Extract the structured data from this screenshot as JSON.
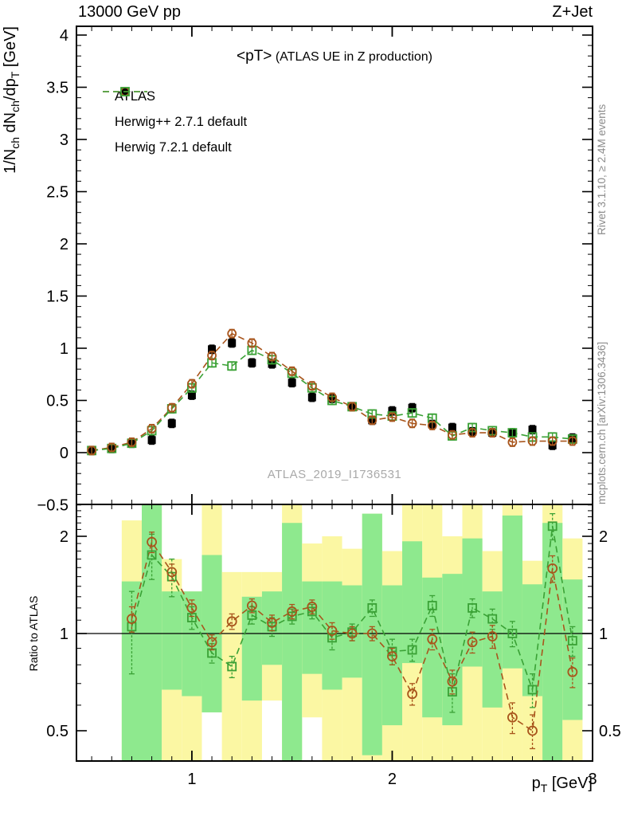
{
  "header": {
    "left": "13000 GeV pp",
    "right": "Z+Jet"
  },
  "title": {
    "prefix": "<pT>",
    "suffix": " (ATLAS UE in Z production)"
  },
  "watermark": "ATLAS_2019_I1736531",
  "side_text_top": "Rivet 3.1.10, ≥ 2.4M events",
  "side_text_bottom": "mcplots.cern.ch [arXiv:1306.3436]",
  "axes": {
    "ylabel_top": "1/N_{ch} dN_{ch}/dp_{T} [GeV]",
    "ylabel_ratio": "Ratio to ATLAS",
    "xlabel": "p_{T} [GeV]",
    "x_ticks": [
      {
        "v": 1,
        "l": "1"
      },
      {
        "v": 2,
        "l": "2"
      },
      {
        "v": 3,
        "l": "3"
      }
    ],
    "top_y_ticks": [
      {
        "v": -0.5,
        "l": "−0.5"
      },
      {
        "v": 0,
        "l": "0"
      },
      {
        "v": 0.5,
        "l": "0.5"
      },
      {
        "v": 1,
        "l": "1"
      },
      {
        "v": 1.5,
        "l": "1.5"
      },
      {
        "v": 2,
        "l": "2"
      },
      {
        "v": 2.5,
        "l": "2.5"
      },
      {
        "v": 3,
        "l": "3"
      },
      {
        "v": 3.5,
        "l": "3.5"
      },
      {
        "v": 4,
        "l": "4"
      }
    ],
    "ratio_y_ticks": [
      {
        "v": 0.5,
        "l": "0.5"
      },
      {
        "v": 1,
        "l": "1"
      },
      {
        "v": 2,
        "l": "2"
      }
    ]
  },
  "legend": [
    {
      "label": "ATLAS",
      "marker": "filled-square",
      "color": "#000000",
      "dashed": false
    },
    {
      "label": "Herwig++ 2.7.1 default",
      "marker": "open-circle",
      "color": "#a8551c",
      "dashed": true
    },
    {
      "label": "Herwig 7.2.1 default",
      "marker": "open-square",
      "color": "#3aa135",
      "dashed": true
    }
  ],
  "colors": {
    "atlas": "#000000",
    "herwigpp": "#a8551c",
    "herwig7": "#3aa135",
    "band_yellow": "#fbf7a3",
    "band_green": "#8ee98e",
    "watermark": "#a9a9a9",
    "side_text": "#8c8c8c"
  },
  "chart_data": {
    "type": "line",
    "title": "<pT> (ATLAS UE in Z production)",
    "xlabel": "p_T [GeV]",
    "ylabel_top": "1/N_ch dN_ch/dp_T [GeV]",
    "ylabel_ratio": "Ratio to ATLAS",
    "xlim": [
      0.424,
      3.0
    ],
    "top_ylim": [
      -0.496,
      4.08
    ],
    "ratio_ylim": [
      0.403,
      2.51
    ],
    "ratio_yscale": "log",
    "x": [
      0.5,
      0.6,
      0.7,
      0.8,
      0.9,
      1.0,
      1.1,
      1.2,
      1.3,
      1.4,
      1.5,
      1.6,
      1.7,
      1.8,
      1.9,
      2.0,
      2.1,
      2.2,
      2.3,
      2.4,
      2.5,
      2.6,
      2.7,
      2.8,
      2.9
    ],
    "series": [
      {
        "name": "ATLAS",
        "marker": "filled-square",
        "color": "#000000",
        "dashed": false,
        "values": [
          0.02,
          0.04,
          0.09,
          0.12,
          0.28,
          0.55,
          0.99,
          1.05,
          0.86,
          0.85,
          0.67,
          0.53,
          0.52,
          0.44,
          0.31,
          0.4,
          0.43,
          0.27,
          0.24,
          0.2,
          0.19,
          0.19,
          0.22,
          0.07,
          0.14
        ]
      },
      {
        "name": "Herwig++ 2.7.1 default",
        "marker": "open-circle",
        "color": "#a8551c",
        "dashed": true,
        "values": [
          0.02,
          0.05,
          0.1,
          0.23,
          0.43,
          0.66,
          0.93,
          1.14,
          1.05,
          0.92,
          0.78,
          0.64,
          0.53,
          0.44,
          0.31,
          0.34,
          0.28,
          0.26,
          0.17,
          0.19,
          0.19,
          0.1,
          0.11,
          0.11,
          0.11
        ]
      },
      {
        "name": "Herwig 7.2.1 default",
        "marker": "open-square",
        "color": "#3aa135",
        "dashed": true,
        "values": [
          0.02,
          0.04,
          0.09,
          0.21,
          0.42,
          0.62,
          0.86,
          0.83,
          0.98,
          0.89,
          0.76,
          0.62,
          0.5,
          0.44,
          0.37,
          0.35,
          0.38,
          0.33,
          0.16,
          0.24,
          0.21,
          0.19,
          0.15,
          0.15,
          0.13
        ]
      }
    ],
    "top_point_error": 0.025,
    "ratio": {
      "x": [
        0.7,
        0.8,
        0.9,
        1.0,
        1.1,
        1.2,
        1.3,
        1.4,
        1.5,
        1.6,
        1.7,
        1.8,
        1.9,
        2.0,
        2.1,
        2.2,
        2.3,
        2.4,
        2.5,
        2.6,
        2.7,
        2.8,
        2.9
      ],
      "series": [
        {
          "name": "Herwig++ 2.7.1 default",
          "marker": "open-circle",
          "color": "#a8551c",
          "values": [
            1.11,
            1.92,
            1.55,
            1.2,
            0.94,
            1.09,
            1.22,
            1.08,
            1.17,
            1.21,
            1.02,
            1.0,
            1.0,
            0.85,
            0.65,
            0.96,
            0.71,
            0.94,
            0.98,
            0.55,
            0.5,
            1.59,
            0.76
          ],
          "errors": [
            0.1,
            0.14,
            0.09,
            0.07,
            0.05,
            0.06,
            0.06,
            0.06,
            0.06,
            0.06,
            0.06,
            0.05,
            0.05,
            0.05,
            0.05,
            0.07,
            0.06,
            0.07,
            0.08,
            0.06,
            0.06,
            0.15,
            0.08
          ]
        },
        {
          "name": "Herwig 7.2.1 default",
          "marker": "open-square",
          "color": "#3aa135",
          "values": [
            1.05,
            1.75,
            1.5,
            1.12,
            0.87,
            0.79,
            1.14,
            1.05,
            1.13,
            1.17,
            0.97,
            1.01,
            1.2,
            0.88,
            0.89,
            1.22,
            0.66,
            1.2,
            1.11,
            1.0,
            0.67,
            2.15,
            0.95
          ],
          "errors": [
            0.3,
            0.28,
            0.2,
            0.09,
            0.06,
            0.06,
            0.07,
            0.07,
            0.06,
            0.06,
            0.08,
            0.06,
            0.07,
            0.08,
            0.07,
            0.09,
            0.09,
            0.08,
            0.08,
            0.09,
            0.08,
            0.2,
            0.1
          ]
        }
      ],
      "bands": [
        {
          "x": 0.7,
          "ylo": 0.4,
          "yhi": 2.24,
          "glo": 0.4,
          "ghi": 1.45
        },
        {
          "x": 0.8,
          "ylo": 0.4,
          "yhi": 2.52,
          "glo": 0.4,
          "ghi": 2.52
        },
        {
          "x": 0.9,
          "ylo": 0.4,
          "yhi": 1.7,
          "glo": 0.67,
          "ghi": 1.35
        },
        {
          "x": 1.0,
          "ylo": 0.4,
          "yhi": 1.35,
          "glo": 0.64,
          "ghi": 1.35
        },
        {
          "x": 1.1,
          "ylo": 0.57,
          "yhi": 2.52,
          "glo": 0.57,
          "ghi": 1.75
        },
        {
          "x": 1.2,
          "ylo": 0.4,
          "yhi": 1.55,
          "glo": 0,
          "ghi": 0
        },
        {
          "x": 1.3,
          "ylo": 0.4,
          "yhi": 1.55,
          "glo": 0.62,
          "ghi": 1.3
        },
        {
          "x": 1.4,
          "ylo": 0.62,
          "yhi": 1.55,
          "glo": 0.8,
          "ghi": 1.35
        },
        {
          "x": 1.5,
          "ylo": 0.4,
          "yhi": 2.52,
          "glo": 0.4,
          "ghi": 2.2
        },
        {
          "x": 1.6,
          "ylo": 0.55,
          "yhi": 1.9,
          "glo": 0.75,
          "ghi": 1.45
        },
        {
          "x": 1.7,
          "ylo": 0.4,
          "yhi": 2.0,
          "glo": 0.67,
          "ghi": 1.45
        },
        {
          "x": 1.8,
          "ylo": 0.4,
          "yhi": 1.83,
          "glo": 0.73,
          "ghi": 1.41
        },
        {
          "x": 1.9,
          "ylo": 0.4,
          "yhi": 2.35,
          "glo": 0.42,
          "ghi": 2.35
        },
        {
          "x": 2.0,
          "ylo": 0.4,
          "yhi": 1.8,
          "glo": 0.52,
          "ghi": 1.41
        },
        {
          "x": 2.1,
          "ylo": 0.4,
          "yhi": 2.52,
          "glo": 0.81,
          "ghi": 1.93
        },
        {
          "x": 2.2,
          "ylo": 0.4,
          "yhi": 2.52,
          "glo": 0.55,
          "ghi": 1.49
        },
        {
          "x": 2.3,
          "ylo": 0.4,
          "yhi": 2.0,
          "glo": 0.52,
          "ghi": 1.53
        },
        {
          "x": 2.4,
          "ylo": 0.4,
          "yhi": 2.52,
          "glo": 0.79,
          "ghi": 1.97
        },
        {
          "x": 2.5,
          "ylo": 0.4,
          "yhi": 1.8,
          "glo": 0.59,
          "ghi": 1.35
        },
        {
          "x": 2.6,
          "ylo": 0.4,
          "yhi": 2.52,
          "glo": 0.78,
          "ghi": 2.32
        },
        {
          "x": 2.7,
          "ylo": 0.4,
          "yhi": 1.68,
          "glo": 0.64,
          "ghi": 1.42
        },
        {
          "x": 2.8,
          "ylo": 0.4,
          "yhi": 2.52,
          "glo": 0.4,
          "ghi": 2.2
        },
        {
          "x": 2.9,
          "ylo": 0.4,
          "yhi": 1.97,
          "glo": 0.54,
          "ghi": 1.47
        }
      ],
      "reference_line": 1.0
    }
  }
}
